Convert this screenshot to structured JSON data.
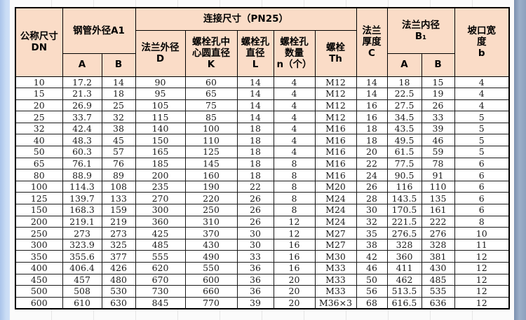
{
  "page": {
    "left_edge_color": "#c9dcf5",
    "right_edge_color": "#8da1bd",
    "header_fill_color": "#fadcc7",
    "border_color": "#000000"
  },
  "table": {
    "header": {
      "dn": "公称尺寸\nDN",
      "pipe_od": "钢管外径A1",
      "connection": "连接尺寸（PN25）",
      "flange_od": "法兰外径\nD",
      "bolt_circle": "螺栓孔中\n心圆直径\nK",
      "bolt_hole_dia": "螺栓孔\n直径\nL",
      "bolt_count": "螺栓孔\n数量\nn（个）",
      "bolt": "螺栓\nTh",
      "thickness": "法兰\n厚度\nC",
      "flange_id": "法兰内径\nB₁",
      "groove": "坡口宽\n度\nb",
      "sub_a1": "A",
      "sub_b1": "B",
      "sub_a2": "A",
      "sub_b2": "B"
    }
  },
  "chart_data": {
    "type": "table",
    "title": "连接尺寸（PN25）",
    "column_keys": [
      "dn",
      "pipe_od_a",
      "pipe_od_b",
      "flange_od_d",
      "bolt_circle_k",
      "bolt_hole_l",
      "bolt_count_n",
      "bolt_th",
      "thickness_c",
      "flange_id_a",
      "flange_id_b",
      "groove_b"
    ],
    "columns": [
      "公称尺寸 DN",
      "钢管外径A1 A",
      "钢管外径A1 B",
      "法兰外径 D",
      "螺栓孔中心圆直径 K",
      "螺栓孔直径 L",
      "螺栓孔数量 n（个）",
      "螺栓 Th",
      "法兰厚度 C",
      "法兰内径 B₁ A",
      "法兰内径 B₁ B",
      "坡口宽度 b"
    ],
    "rows": [
      [
        "10",
        "17.2",
        "14",
        "90",
        "60",
        "14",
        "4",
        "M12",
        "14",
        "18",
        "15",
        "4"
      ],
      [
        "15",
        "21.3",
        "18",
        "95",
        "65",
        "14",
        "4",
        "M12",
        "14",
        "22.5",
        "19",
        "4"
      ],
      [
        "20",
        "26.9",
        "25",
        "105",
        "75",
        "14",
        "4",
        "M12",
        "16",
        "27.5",
        "26",
        "4"
      ],
      [
        "25",
        "33.7",
        "32",
        "115",
        "85",
        "14",
        "4",
        "M12",
        "16",
        "34.5",
        "33",
        "5"
      ],
      [
        "32",
        "42.4",
        "38",
        "140",
        "100",
        "18",
        "4",
        "M16",
        "18",
        "43.5",
        "39",
        "5"
      ],
      [
        "40",
        "48.3",
        "45",
        "150",
        "110",
        "18",
        "4",
        "M16",
        "18",
        "49.5",
        "46",
        "5"
      ],
      [
        "50",
        "60.3",
        "57",
        "165",
        "125",
        "18",
        "4",
        "M16",
        "20",
        "61.5",
        "59",
        "5"
      ],
      [
        "65",
        "76.1",
        "76",
        "185",
        "145",
        "18",
        "8",
        "M16",
        "22",
        "77.5",
        "78",
        "6"
      ],
      [
        "80",
        "88.9",
        "89",
        "200",
        "160",
        "18",
        "8",
        "M16",
        "24",
        "90.5",
        "91",
        "6"
      ],
      [
        "100",
        "114.3",
        "108",
        "235",
        "190",
        "22",
        "8",
        "M20",
        "26",
        "116",
        "110",
        "6"
      ],
      [
        "125",
        "139.7",
        "133",
        "270",
        "220",
        "26",
        "8",
        "M24",
        "28",
        "143.5",
        "135",
        "6"
      ],
      [
        "150",
        "168.3",
        "159",
        "300",
        "250",
        "26",
        "8",
        "M24",
        "30",
        "170.5",
        "161",
        "6"
      ],
      [
        "200",
        "219.1",
        "219",
        "360",
        "310",
        "26",
        "12",
        "M24",
        "32",
        "221.5",
        "222",
        "8"
      ],
      [
        "250",
        "273",
        "273",
        "425",
        "370",
        "30",
        "12",
        "M27",
        "35",
        "276.5",
        "276",
        "10"
      ],
      [
        "300",
        "323.9",
        "325",
        "485",
        "430",
        "30",
        "16",
        "M27",
        "38",
        "328",
        "328",
        "11"
      ],
      [
        "350",
        "355.6",
        "377",
        "555",
        "490",
        "33",
        "16",
        "M30",
        "42",
        "360",
        "381",
        "12"
      ],
      [
        "400",
        "406.4",
        "426",
        "620",
        "550",
        "36",
        "16",
        "M33",
        "46",
        "411",
        "430",
        "12"
      ],
      [
        "450",
        "457",
        "480",
        "670",
        "600",
        "36",
        "20",
        "M33",
        "50",
        "462",
        "485",
        "12"
      ],
      [
        "500",
        "508",
        "530",
        "730",
        "660",
        "36",
        "20",
        "M33",
        "56",
        "513.5",
        "535",
        "12"
      ],
      [
        "600",
        "610",
        "630",
        "845",
        "770",
        "39",
        "20",
        "M36×3",
        "68",
        "616.5",
        "636",
        "12"
      ]
    ]
  }
}
